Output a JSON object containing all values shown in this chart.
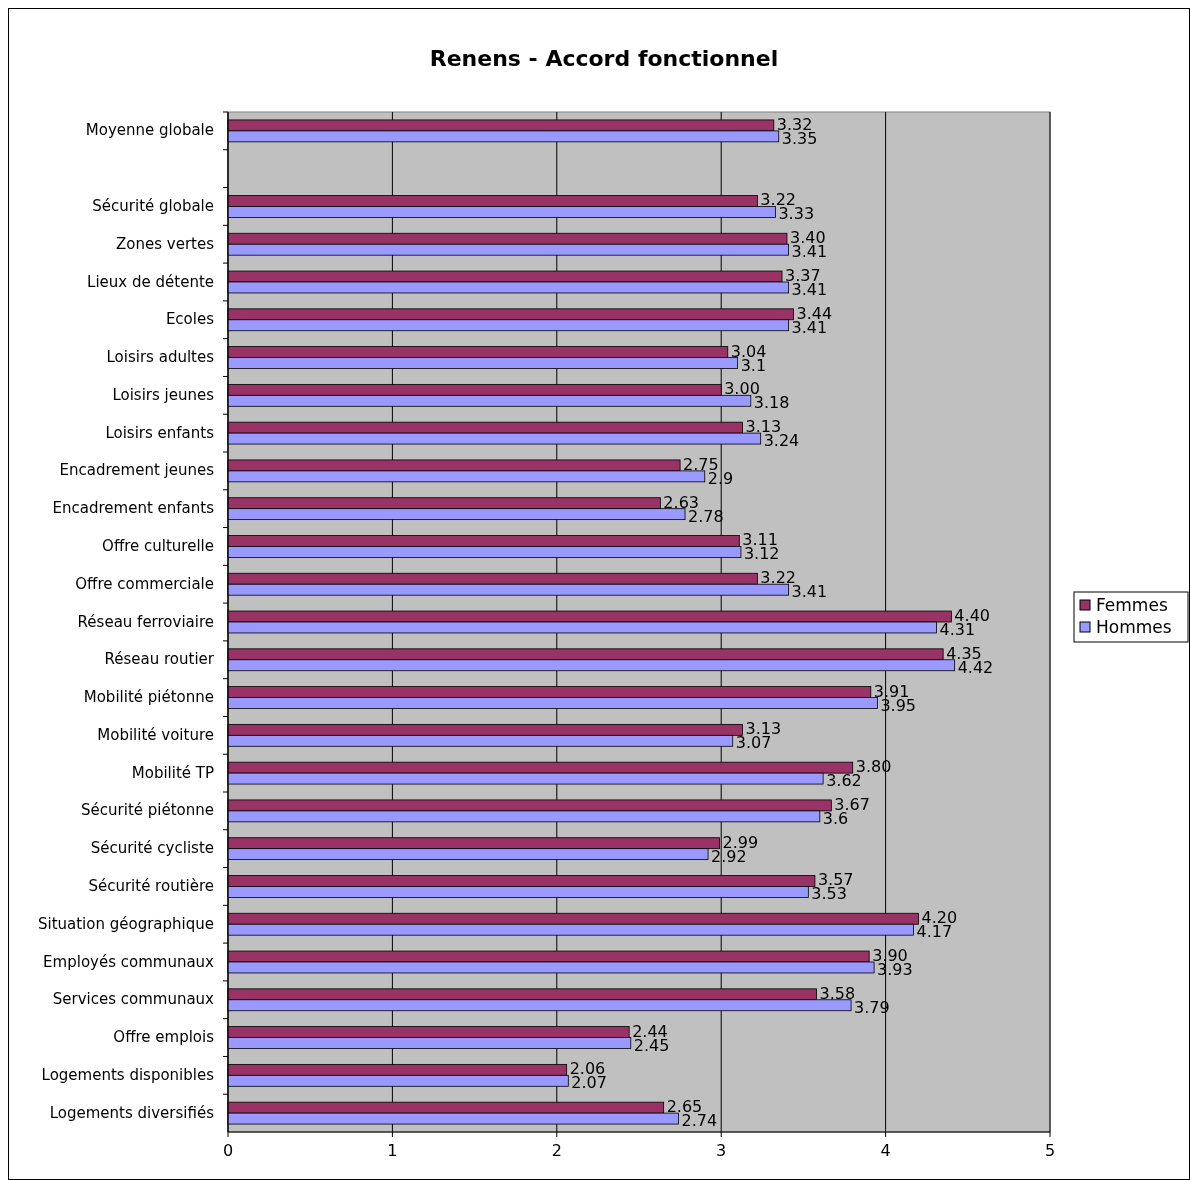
{
  "chart_data": {
    "type": "bar",
    "orientation": "horizontal",
    "title": "Renens - Accord fonctionnel",
    "categories": [
      "Moyenne globale",
      null,
      "Sécurité globale",
      "Zones vertes",
      "Lieux de détente",
      "Ecoles",
      "Loisirs adultes",
      "Loisirs jeunes",
      "Loisirs enfants",
      "Encadrement jeunes",
      "Encadrement enfants",
      "Offre culturelle",
      "Offre commerciale",
      "Réseau ferroviaire",
      "Réseau routier",
      "Mobilité piétonne",
      "Mobilité voiture",
      "Mobilité TP",
      "Sécurité piétonne",
      "Sécurité cycliste",
      "Sécurité routière",
      "Situation géographique",
      "Employés communaux",
      "Services communaux",
      "Offre emplois",
      "Logements disponibles",
      "Logements diversifiés"
    ],
    "series": [
      {
        "name": "Femmes",
        "color": "#993366",
        "values": [
          3.32,
          null,
          3.22,
          3.4,
          3.37,
          3.44,
          3.04,
          3.0,
          3.13,
          2.75,
          2.63,
          3.11,
          3.22,
          4.4,
          4.35,
          3.91,
          3.13,
          3.8,
          3.67,
          2.99,
          3.57,
          4.2,
          3.9,
          3.58,
          2.44,
          2.06,
          2.65
        ],
        "value_labels": [
          "3.32",
          null,
          "3.22",
          "3.40",
          "3.37",
          "3.44",
          "3.04",
          "3.00",
          "3.13",
          "2.75",
          "2.63",
          "3.11",
          "3.22",
          "4.40",
          "4.35",
          "3.91",
          "3.13",
          "3.80",
          "3.67",
          "2.99",
          "3.57",
          "4.20",
          "3.90",
          "3.58",
          "2.44",
          "2.06",
          "2.65"
        ]
      },
      {
        "name": "Hommes",
        "color": "#9999ff",
        "values": [
          3.35,
          null,
          3.33,
          3.41,
          3.41,
          3.41,
          3.1,
          3.18,
          3.24,
          2.9,
          2.78,
          3.12,
          3.41,
          4.31,
          4.42,
          3.95,
          3.07,
          3.62,
          3.6,
          2.92,
          3.53,
          4.17,
          3.93,
          3.79,
          2.45,
          2.07,
          2.74
        ],
        "value_labels": [
          "3.35",
          null,
          "3.33",
          "3.41",
          "3.41",
          "3.41",
          "3.1",
          "3.18",
          "3.24",
          "2.9",
          "2.78",
          "3.12",
          "3.41",
          "4.31",
          "4.42",
          "3.95",
          "3.07",
          "3.62",
          "3.6",
          "2.92",
          "3.53",
          "4.17",
          "3.93",
          "3.79",
          "2.45",
          "2.07",
          "2.74"
        ]
      }
    ],
    "xlim": [
      0,
      5
    ],
    "xticks": [
      0,
      1,
      2,
      3,
      4,
      5
    ],
    "grid": "x",
    "legend": "right"
  }
}
